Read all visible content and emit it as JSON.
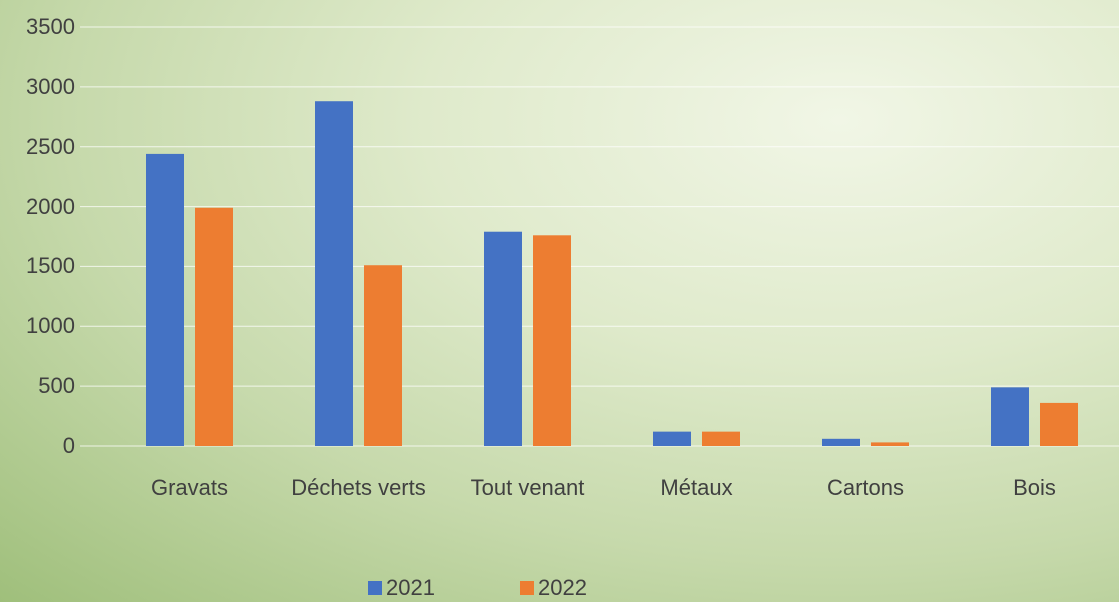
{
  "chart_data": {
    "type": "bar",
    "categories": [
      "Gravats",
      "Déchets verts",
      "Tout venant",
      "Métaux",
      "Cartons",
      "Bois"
    ],
    "series": [
      {
        "name": "2021",
        "color": "#4472c4",
        "values": [
          2440,
          2880,
          1790,
          120,
          60,
          490
        ]
      },
      {
        "name": "2022",
        "color": "#ed7d31",
        "values": [
          1990,
          1510,
          1760,
          120,
          30,
          360
        ]
      }
    ],
    "ylim": [
      0,
      3500
    ],
    "yticks": [
      0,
      500,
      1000,
      1500,
      2000,
      2500,
      3000,
      3500
    ],
    "grid": true,
    "legend": "bottom"
  }
}
